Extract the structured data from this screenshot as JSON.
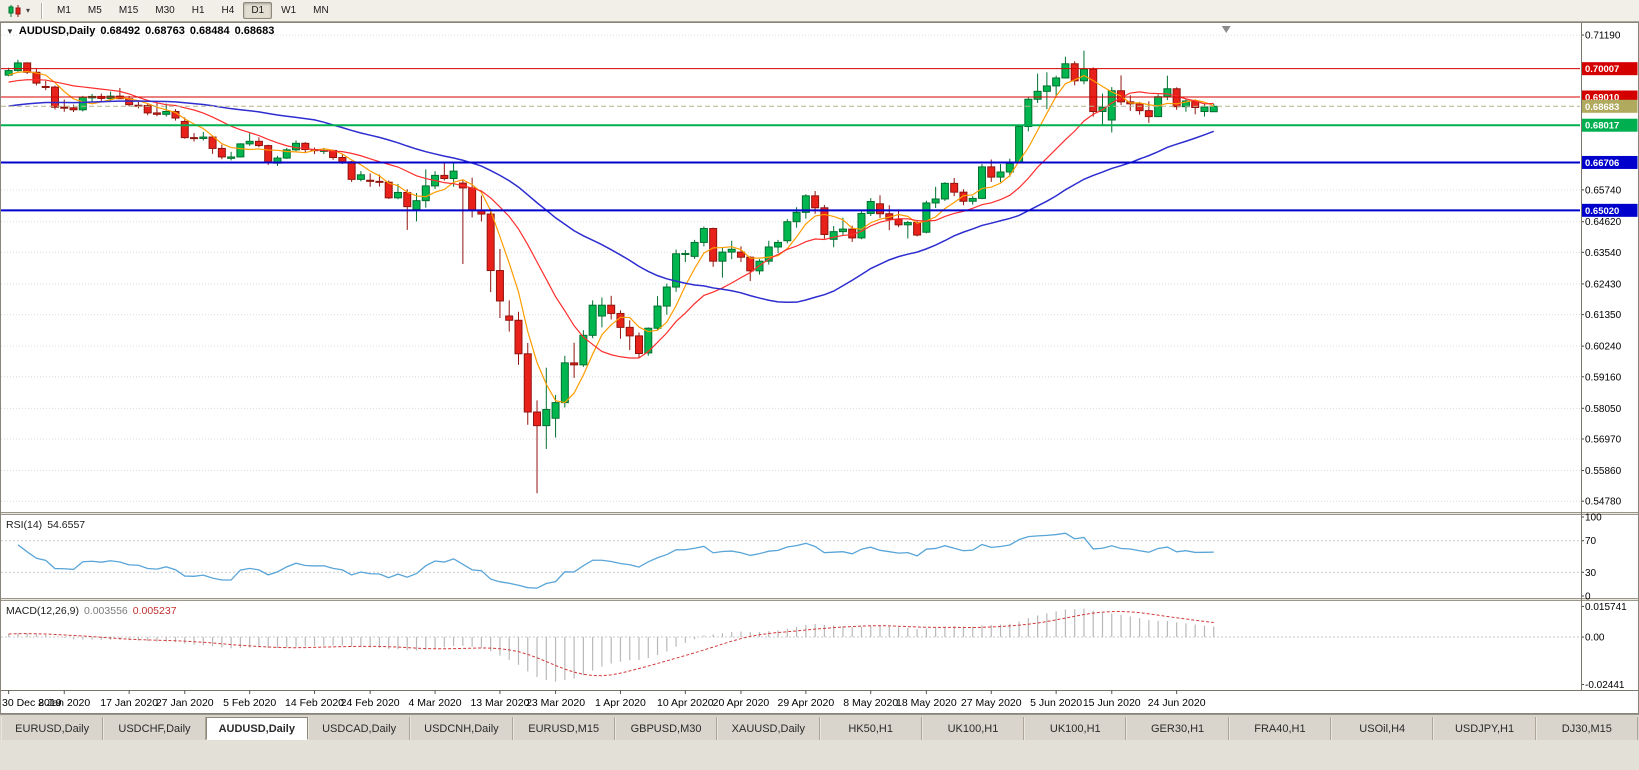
{
  "toolbar": {
    "timeframes": [
      "M1",
      "M5",
      "M15",
      "M30",
      "H1",
      "H4",
      "D1",
      "W1",
      "MN"
    ],
    "active_timeframe": "D1"
  },
  "chart_title": {
    "symbol": "AUDUSD,Daily",
    "open": "0.68492",
    "high": "0.68763",
    "low": "0.68484",
    "close": "0.68683"
  },
  "indicator_labels": {
    "rsi_name": "RSI(14)",
    "rsi_value": "54.6557",
    "macd_name": "MACD(12,26,9)",
    "macd_main": "0.003556",
    "macd_signal": "0.005237"
  },
  "tabs": {
    "active_index": 2,
    "items": [
      "EURUSD,Daily",
      "USDCHF,Daily",
      "AUDUSD,Daily",
      "USDCAD,Daily",
      "USDCNH,Daily",
      "EURUSD,M15",
      "GBPUSD,M30",
      "XAUUSD,Daily",
      "HK50,H1",
      "UK100,H1",
      "UK100,H1",
      "GER30,H1",
      "FRA40,H1",
      "USOil,H4",
      "USDJPY,H1",
      "DJ30,M15"
    ]
  },
  "chart_data": {
    "type": "candlestick",
    "symbol": "AUDUSD",
    "timeframe": "Daily",
    "ylim": [
      0.544,
      0.7158
    ],
    "up_color": "#00b64f",
    "up_border": "#00702f",
    "down_color": "#e8221a",
    "down_border": "#90140e",
    "y_ticks": [
      0.7119,
      0.6574,
      0.6462,
      0.6354,
      0.6243,
      0.6135,
      0.6024,
      0.5916,
      0.5805,
      0.5697,
      0.5586,
      0.5478
    ],
    "levels": [
      {
        "label": "0.70007",
        "value": 0.70007,
        "color": "#d40000",
        "width": 1,
        "style": "solid"
      },
      {
        "label": "0.69010",
        "value": 0.6901,
        "color": "#d40000",
        "width": 1,
        "style": "solid"
      },
      {
        "label": "0.68683",
        "value": 0.68683,
        "color": "#b0aa5e",
        "line_color": "#b7b28b",
        "width": 1,
        "style": "dashed",
        "role": "current-price"
      },
      {
        "label": "0.68017",
        "value": 0.68017,
        "color": "#00b050",
        "width": 2,
        "style": "solid"
      },
      {
        "label": "0.66706",
        "value": 0.66706,
        "color": "#0000cc",
        "width": 2,
        "style": "solid"
      },
      {
        "label": "0.65020",
        "value": 0.6502,
        "color": "#0000cc",
        "width": 2,
        "style": "solid"
      }
    ],
    "moving_averages": [
      {
        "period": 5,
        "pre": 0.6975,
        "color": "#ff9c00",
        "width": 1.2
      },
      {
        "period": 13,
        "pre": 0.695,
        "color": "#ff2e2e",
        "width": 1.2
      },
      {
        "period": 34,
        "pre": 0.6865,
        "color": "#2d2dd0",
        "width": 1.5
      }
    ],
    "rsi": {
      "period": 14,
      "seed_gain": 0.0009,
      "seed_loss": 0.0006,
      "color": "#5aa5d8",
      "overbought": 70,
      "oversold": 30,
      "axis_labels": [
        "100",
        "70",
        "30",
        "0"
      ]
    },
    "macd": {
      "fast": 12,
      "slow": 26,
      "signal": 9,
      "fast_seed": 0.6962,
      "slow_seed": 0.6948,
      "hist_color": "#b9b9b9",
      "signal_color": "#d23a3a",
      "range": [
        -0.0262,
        0.0175
      ],
      "axis_labels": [
        {
          "v": 0.015741,
          "t": "0.015741"
        },
        {
          "v": 0.0,
          "t": "0.00"
        },
        {
          "v": -0.02441,
          "t": "-0.02441"
        }
      ]
    },
    "x_axis_labels": [
      {
        "label": "30 Dec 2019",
        "index": 0
      },
      {
        "label": "8 Jan 2020",
        "index": 6
      },
      {
        "label": "17 Jan 2020",
        "index": 13
      },
      {
        "label": "27 Jan 2020",
        "index": 19
      },
      {
        "label": "5 Feb 2020",
        "index": 26
      },
      {
        "label": "14 Feb 2020",
        "index": 33
      },
      {
        "label": "24 Feb 2020",
        "index": 39
      },
      {
        "label": "4 Mar 2020",
        "index": 46
      },
      {
        "label": "13 Mar 2020",
        "index": 53
      },
      {
        "label": "23 Mar 2020",
        "index": 59
      },
      {
        "label": "1 Apr 2020",
        "index": 66
      },
      {
        "label": "10 Apr 2020",
        "index": 73
      },
      {
        "label": "20 Apr 2020",
        "index": 79
      },
      {
        "label": "29 Apr 2020",
        "index": 86
      },
      {
        "label": "8 May 2020",
        "index": 93
      },
      {
        "label": "18 May 2020",
        "index": 99
      },
      {
        "label": "27 May 2020",
        "index": 106
      },
      {
        "label": "5 Jun 2020",
        "index": 113
      },
      {
        "label": "15 Jun 2020",
        "index": 119
      },
      {
        "label": "24 Jun 2020",
        "index": 126
      }
    ],
    "candles": [
      [
        0.6978,
        0.7004,
        0.6974,
        0.6994
      ],
      [
        0.6994,
        0.7032,
        0.699,
        0.7021
      ],
      [
        0.7021,
        0.7023,
        0.6982,
        0.6988
      ],
      [
        0.6988,
        0.7,
        0.6942,
        0.695
      ],
      [
        0.6938,
        0.6958,
        0.6925,
        0.6936
      ],
      [
        0.6936,
        0.6941,
        0.6857,
        0.6865
      ],
      [
        0.6865,
        0.6892,
        0.6849,
        0.6863
      ],
      [
        0.6863,
        0.6874,
        0.6848,
        0.6856
      ],
      [
        0.6856,
        0.6905,
        0.685,
        0.69
      ],
      [
        0.6898,
        0.6912,
        0.6885,
        0.6903
      ],
      [
        0.6903,
        0.6913,
        0.6883,
        0.6896
      ],
      [
        0.6896,
        0.692,
        0.6886,
        0.6904
      ],
      [
        0.6904,
        0.6933,
        0.6894,
        0.6895
      ],
      [
        0.6895,
        0.6905,
        0.6868,
        0.6874
      ],
      [
        0.6872,
        0.6884,
        0.6861,
        0.6871
      ],
      [
        0.6871,
        0.6878,
        0.6837,
        0.6845
      ],
      [
        0.6845,
        0.6879,
        0.6833,
        0.684
      ],
      [
        0.684,
        0.6878,
        0.6832,
        0.685
      ],
      [
        0.685,
        0.6858,
        0.6818,
        0.6827
      ],
      [
        0.6815,
        0.6829,
        0.6754,
        0.6758
      ],
      [
        0.6758,
        0.6774,
        0.6744,
        0.6755
      ],
      [
        0.6755,
        0.6778,
        0.6748,
        0.676
      ],
      [
        0.676,
        0.6765,
        0.6701,
        0.672
      ],
      [
        0.672,
        0.6733,
        0.6682,
        0.669
      ],
      [
        0.6685,
        0.6708,
        0.6678,
        0.669
      ],
      [
        0.669,
        0.6738,
        0.6688,
        0.6736
      ],
      [
        0.6736,
        0.6774,
        0.6729,
        0.6745
      ],
      [
        0.6745,
        0.6759,
        0.6724,
        0.673
      ],
      [
        0.673,
        0.6733,
        0.6662,
        0.667
      ],
      [
        0.6668,
        0.6694,
        0.6658,
        0.6686
      ],
      [
        0.6686,
        0.6722,
        0.6683,
        0.6715
      ],
      [
        0.6715,
        0.6748,
        0.671,
        0.6738
      ],
      [
        0.6738,
        0.6742,
        0.6705,
        0.6716
      ],
      [
        0.6716,
        0.6723,
        0.67,
        0.6712
      ],
      [
        0.671,
        0.6722,
        0.67,
        0.6713
      ],
      [
        0.6713,
        0.6716,
        0.668,
        0.6688
      ],
      [
        0.6688,
        0.67,
        0.6665,
        0.6673
      ],
      [
        0.6673,
        0.6676,
        0.6602,
        0.6611
      ],
      [
        0.6611,
        0.664,
        0.6604,
        0.6627
      ],
      [
        0.6608,
        0.6632,
        0.6585,
        0.6604
      ],
      [
        0.6604,
        0.6628,
        0.6586,
        0.6601
      ],
      [
        0.6601,
        0.6607,
        0.6542,
        0.6546
      ],
      [
        0.6546,
        0.6595,
        0.6541,
        0.6565
      ],
      [
        0.6565,
        0.6576,
        0.6433,
        0.6515
      ],
      [
        0.6505,
        0.6563,
        0.6463,
        0.6536
      ],
      [
        0.6536,
        0.6646,
        0.6511,
        0.6588
      ],
      [
        0.6588,
        0.664,
        0.6577,
        0.6625
      ],
      [
        0.6625,
        0.667,
        0.6607,
        0.6614
      ],
      [
        0.6614,
        0.6668,
        0.6585,
        0.664
      ],
      [
        0.6598,
        0.661,
        0.6313,
        0.6581
      ],
      [
        0.6581,
        0.6617,
        0.6477,
        0.6503
      ],
      [
        0.6503,
        0.6554,
        0.6463,
        0.6489
      ],
      [
        0.6489,
        0.6508,
        0.6214,
        0.629
      ],
      [
        0.629,
        0.6366,
        0.6123,
        0.6183
      ],
      [
        0.613,
        0.6185,
        0.6075,
        0.6115
      ],
      [
        0.6115,
        0.6145,
        0.5958,
        0.5997
      ],
      [
        0.5997,
        0.6035,
        0.5747,
        0.5792
      ],
      [
        0.5792,
        0.5833,
        0.5506,
        0.5744
      ],
      [
        0.5744,
        0.5948,
        0.5662,
        0.5801
      ],
      [
        0.577,
        0.5852,
        0.5702,
        0.5825
      ],
      [
        0.5825,
        0.599,
        0.5808,
        0.5965
      ],
      [
        0.5965,
        0.6036,
        0.5912,
        0.5958
      ],
      [
        0.5958,
        0.608,
        0.5951,
        0.6062
      ],
      [
        0.6062,
        0.6185,
        0.6052,
        0.6168
      ],
      [
        0.613,
        0.6195,
        0.609,
        0.6168
      ],
      [
        0.6168,
        0.6201,
        0.6118,
        0.6139
      ],
      [
        0.6139,
        0.615,
        0.605,
        0.609
      ],
      [
        0.609,
        0.6115,
        0.601,
        0.606
      ],
      [
        0.606,
        0.6072,
        0.5982,
        0.5998
      ],
      [
        0.6,
        0.609,
        0.599,
        0.6087
      ],
      [
        0.6087,
        0.62,
        0.608,
        0.6165
      ],
      [
        0.6165,
        0.6244,
        0.6135,
        0.6232
      ],
      [
        0.6232,
        0.6364,
        0.6215,
        0.6349
      ],
      [
        0.6349,
        0.6362,
        0.632,
        0.635
      ],
      [
        0.634,
        0.6398,
        0.6331,
        0.6389
      ],
      [
        0.6389,
        0.6445,
        0.6375,
        0.6438
      ],
      [
        0.6438,
        0.6441,
        0.6303,
        0.6323
      ],
      [
        0.6323,
        0.637,
        0.6265,
        0.6355
      ],
      [
        0.6355,
        0.6395,
        0.633,
        0.6365
      ],
      [
        0.6355,
        0.6375,
        0.632,
        0.6337
      ],
      [
        0.6337,
        0.634,
        0.6253,
        0.6289
      ],
      [
        0.6289,
        0.633,
        0.6276,
        0.6323
      ],
      [
        0.6323,
        0.6395,
        0.6311,
        0.6373
      ],
      [
        0.6373,
        0.6398,
        0.6352,
        0.6389
      ],
      [
        0.6395,
        0.6471,
        0.6386,
        0.6462
      ],
      [
        0.6462,
        0.6513,
        0.6441,
        0.6495
      ],
      [
        0.6495,
        0.6559,
        0.6473,
        0.6553
      ],
      [
        0.6553,
        0.657,
        0.649,
        0.6511
      ],
      [
        0.6511,
        0.6521,
        0.6402,
        0.6417
      ],
      [
        0.64,
        0.6447,
        0.6372,
        0.6427
      ],
      [
        0.6427,
        0.6476,
        0.6414,
        0.6436
      ],
      [
        0.6436,
        0.6448,
        0.6391,
        0.6405
      ],
      [
        0.6405,
        0.6498,
        0.64,
        0.6491
      ],
      [
        0.6491,
        0.6545,
        0.6482,
        0.6533
      ],
      [
        0.6525,
        0.6555,
        0.6475,
        0.649
      ],
      [
        0.649,
        0.652,
        0.6432,
        0.6471
      ],
      [
        0.6471,
        0.6504,
        0.6443,
        0.6451
      ],
      [
        0.6451,
        0.6465,
        0.6403,
        0.6459
      ],
      [
        0.6459,
        0.6468,
        0.641,
        0.6415
      ],
      [
        0.6425,
        0.6536,
        0.6421,
        0.6528
      ],
      [
        0.6528,
        0.6585,
        0.651,
        0.6542
      ],
      [
        0.6542,
        0.6601,
        0.6535,
        0.6597
      ],
      [
        0.6597,
        0.6616,
        0.6552,
        0.6566
      ],
      [
        0.6566,
        0.6576,
        0.652,
        0.6534
      ],
      [
        0.6534,
        0.6552,
        0.6522,
        0.6544
      ],
      [
        0.6544,
        0.6665,
        0.6541,
        0.6655
      ],
      [
        0.6655,
        0.6681,
        0.6602,
        0.6619
      ],
      [
        0.6619,
        0.6665,
        0.6601,
        0.6637
      ],
      [
        0.6637,
        0.6684,
        0.662,
        0.6667
      ],
      [
        0.667,
        0.6801,
        0.6669,
        0.6797
      ],
      [
        0.6797,
        0.6899,
        0.678,
        0.6893
      ],
      [
        0.6893,
        0.6983,
        0.688,
        0.6921
      ],
      [
        0.6921,
        0.6988,
        0.6858,
        0.694
      ],
      [
        0.694,
        0.6976,
        0.6905,
        0.6968
      ],
      [
        0.6968,
        0.7043,
        0.6966,
        0.7018
      ],
      [
        0.7018,
        0.7027,
        0.6942,
        0.6958
      ],
      [
        0.6958,
        0.7064,
        0.6946,
        0.6999
      ],
      [
        0.6999,
        0.7005,
        0.6832,
        0.685
      ],
      [
        0.685,
        0.6913,
        0.68,
        0.6865
      ],
      [
        0.682,
        0.6936,
        0.6776,
        0.6923
      ],
      [
        0.6923,
        0.6977,
        0.6873,
        0.6884
      ],
      [
        0.6884,
        0.6907,
        0.6852,
        0.6877
      ],
      [
        0.6877,
        0.6884,
        0.6839,
        0.6853
      ],
      [
        0.6853,
        0.6886,
        0.681,
        0.6832
      ],
      [
        0.6832,
        0.691,
        0.683,
        0.6902
      ],
      [
        0.6902,
        0.6976,
        0.689,
        0.693
      ],
      [
        0.693,
        0.6935,
        0.6856,
        0.6867
      ],
      [
        0.6867,
        0.6894,
        0.6849,
        0.6887
      ],
      [
        0.6887,
        0.6892,
        0.684,
        0.6864
      ],
      [
        0.685,
        0.6876,
        0.6832,
        0.6866
      ],
      [
        0.68492,
        0.68763,
        0.68484,
        0.68683
      ]
    ]
  }
}
